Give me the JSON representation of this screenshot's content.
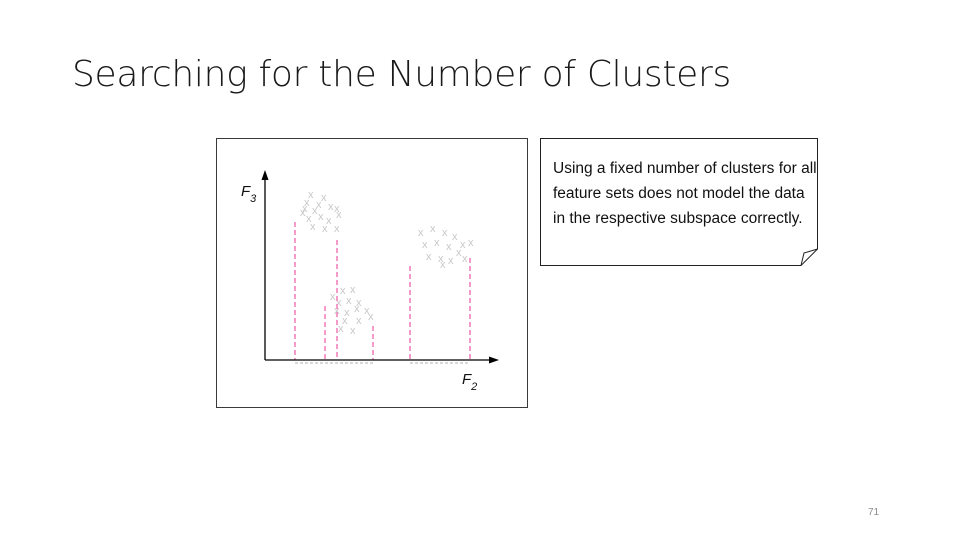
{
  "slide": {
    "title": "Searching for the Number of Clusters",
    "page_number": "71"
  },
  "callout": {
    "text": "Using a fixed number of clusters for all feature sets does not model the data in the respective subspace correctly."
  },
  "diagram": {
    "y_axis": {
      "label": "F",
      "subscript": "3"
    },
    "x_axis": {
      "label": "F",
      "subscript": "2"
    },
    "point_glyph": "x",
    "colors": {
      "border": "#3a3a3a",
      "axis": "#000000",
      "boundary": "#f07ab8",
      "projection": "#b0b0b0",
      "points": "#c8c8c8"
    }
  }
}
